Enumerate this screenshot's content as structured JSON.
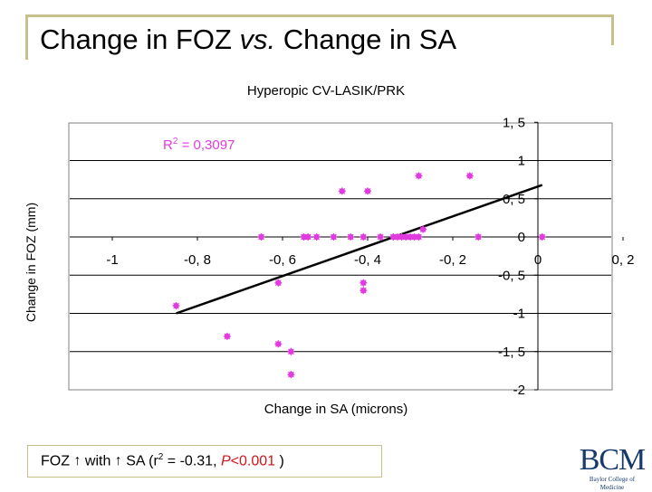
{
  "slide": {
    "title_part1": "Change in FOZ ",
    "title_italic": "vs.",
    "title_part2": " Change in SA",
    "footnote": {
      "text1": "FOZ ",
      "arrow1": "↑",
      "text2": " with ",
      "arrow2": "↑",
      "text3": " SA (r",
      "sup": "2",
      "text4": " = -0.31, ",
      "p_label": "P",
      "p_value": "<0.001",
      "text5": " )"
    },
    "logo": {
      "main": "BCM",
      "sub": "Baylor College of Medicine"
    },
    "colors": {
      "frame": "#c8c08a",
      "points": "#e23be0",
      "p_value": "#d2141a",
      "logo": "#173a6b"
    }
  },
  "chart_data": {
    "type": "scatter",
    "title": "Hyperopic CV-LASIK/PRK",
    "xlabel": "Change in SA (microns)",
    "ylabel": "Change in FOZ (mm)",
    "xlim": [
      -1.1,
      0.25
    ],
    "ylim": [
      -2,
      1.5
    ],
    "x_ticks": [
      -1,
      -0.8,
      -0.6,
      -0.4,
      -0.2,
      0,
      0.2
    ],
    "x_tick_labels": [
      "-1",
      "-0, 8",
      "-0, 6",
      "-0, 4",
      "-0, 2",
      "0",
      "0, 2"
    ],
    "y_ticks": [
      1.5,
      1,
      0.5,
      0,
      -0.5,
      -1,
      -1.5,
      -2
    ],
    "y_tick_labels": [
      "1, 5",
      "1",
      "0, 5",
      "0",
      "-0, 5",
      "-1",
      "-1, 5",
      "-2"
    ],
    "grid": "horizontal",
    "annotation": {
      "prefix": "R",
      "sup": "2",
      "suffix": " = 0,3097"
    },
    "trendline": {
      "x": [
        -0.85,
        0.01
      ],
      "y": [
        -1.0,
        0.68
      ]
    },
    "points": [
      {
        "x": -0.85,
        "y": -0.9
      },
      {
        "x": -0.73,
        "y": -1.3
      },
      {
        "x": -0.65,
        "y": 0.0
      },
      {
        "x": -0.61,
        "y": -1.4
      },
      {
        "x": -0.61,
        "y": -0.6
      },
      {
        "x": -0.58,
        "y": -1.5
      },
      {
        "x": -0.58,
        "y": -1.8
      },
      {
        "x": -0.55,
        "y": 0.0
      },
      {
        "x": -0.54,
        "y": 0.0
      },
      {
        "x": -0.52,
        "y": 0.0
      },
      {
        "x": -0.48,
        "y": 0.0
      },
      {
        "x": -0.46,
        "y": 0.6
      },
      {
        "x": -0.44,
        "y": 0.0
      },
      {
        "x": -0.41,
        "y": 0.0
      },
      {
        "x": -0.41,
        "y": -0.6
      },
      {
        "x": -0.41,
        "y": -0.7
      },
      {
        "x": -0.4,
        "y": 0.6
      },
      {
        "x": -0.37,
        "y": 0.0
      },
      {
        "x": -0.34,
        "y": 0.0
      },
      {
        "x": -0.33,
        "y": 0.0
      },
      {
        "x": -0.32,
        "y": 0.0
      },
      {
        "x": -0.31,
        "y": 0.0
      },
      {
        "x": -0.3,
        "y": 0.0
      },
      {
        "x": -0.29,
        "y": 0.0
      },
      {
        "x": -0.28,
        "y": 0.0
      },
      {
        "x": -0.27,
        "y": 0.1
      },
      {
        "x": -0.28,
        "y": 0.8
      },
      {
        "x": -0.16,
        "y": 0.8
      },
      {
        "x": -0.14,
        "y": 0.0
      },
      {
        "x": 0.01,
        "y": 0.0
      }
    ]
  }
}
